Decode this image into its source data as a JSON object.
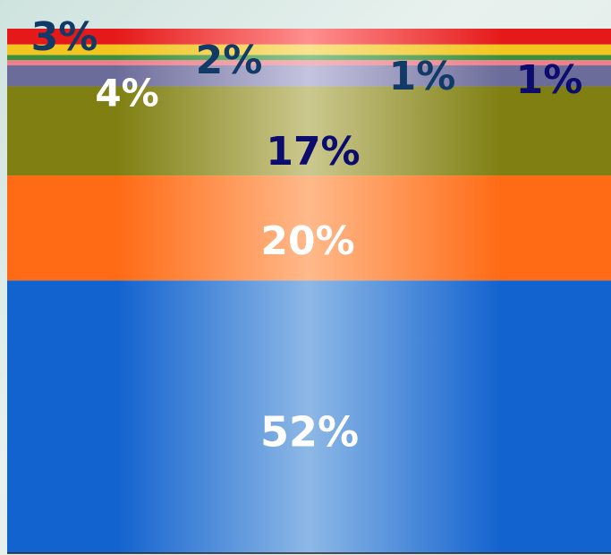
{
  "chart_data": {
    "type": "bar",
    "stacked": true,
    "orientation": "vertical-single-column",
    "total_percent": 100,
    "segments": [
      {
        "label": "52%",
        "value": 52,
        "colors": {
          "edge": "#1262cf",
          "mid": "#8db8e6"
        },
        "label_color": "#ffffff"
      },
      {
        "label": "20%",
        "value": 20,
        "colors": {
          "edge": "#ff6a14",
          "mid": "#ffb98a"
        },
        "label_color": "#ffffff"
      },
      {
        "label": "17%",
        "value": 17,
        "colors": {
          "edge": "#7f7f12",
          "mid": "#cbc88e"
        },
        "label_color": "#0c0c6e"
      },
      {
        "label": "4%",
        "value": 4,
        "colors": {
          "edge": "#6c6c9a",
          "mid": "#c5c4df"
        },
        "label_color": "#ffffff"
      },
      {
        "label": "1%",
        "value": 1,
        "colors": {
          "edge": "#f07f8c",
          "mid": "#f6b6bd"
        },
        "label_color": "#0c0c6e"
      },
      {
        "label": "1%",
        "value": 1,
        "colors": {
          "edge": "#3c8f3c",
          "mid": "#8ec48e"
        },
        "label_color": "#113a66"
      },
      {
        "label": "2%",
        "value": 2,
        "colors": {
          "edge": "#f3c51e",
          "mid": "#f8e28d"
        },
        "label_color": "#113a66"
      },
      {
        "label": "3%",
        "value": 3,
        "colors": {
          "edge": "#e51919",
          "mid": "#ff8f8f"
        },
        "label_color": "#113a66"
      }
    ]
  }
}
